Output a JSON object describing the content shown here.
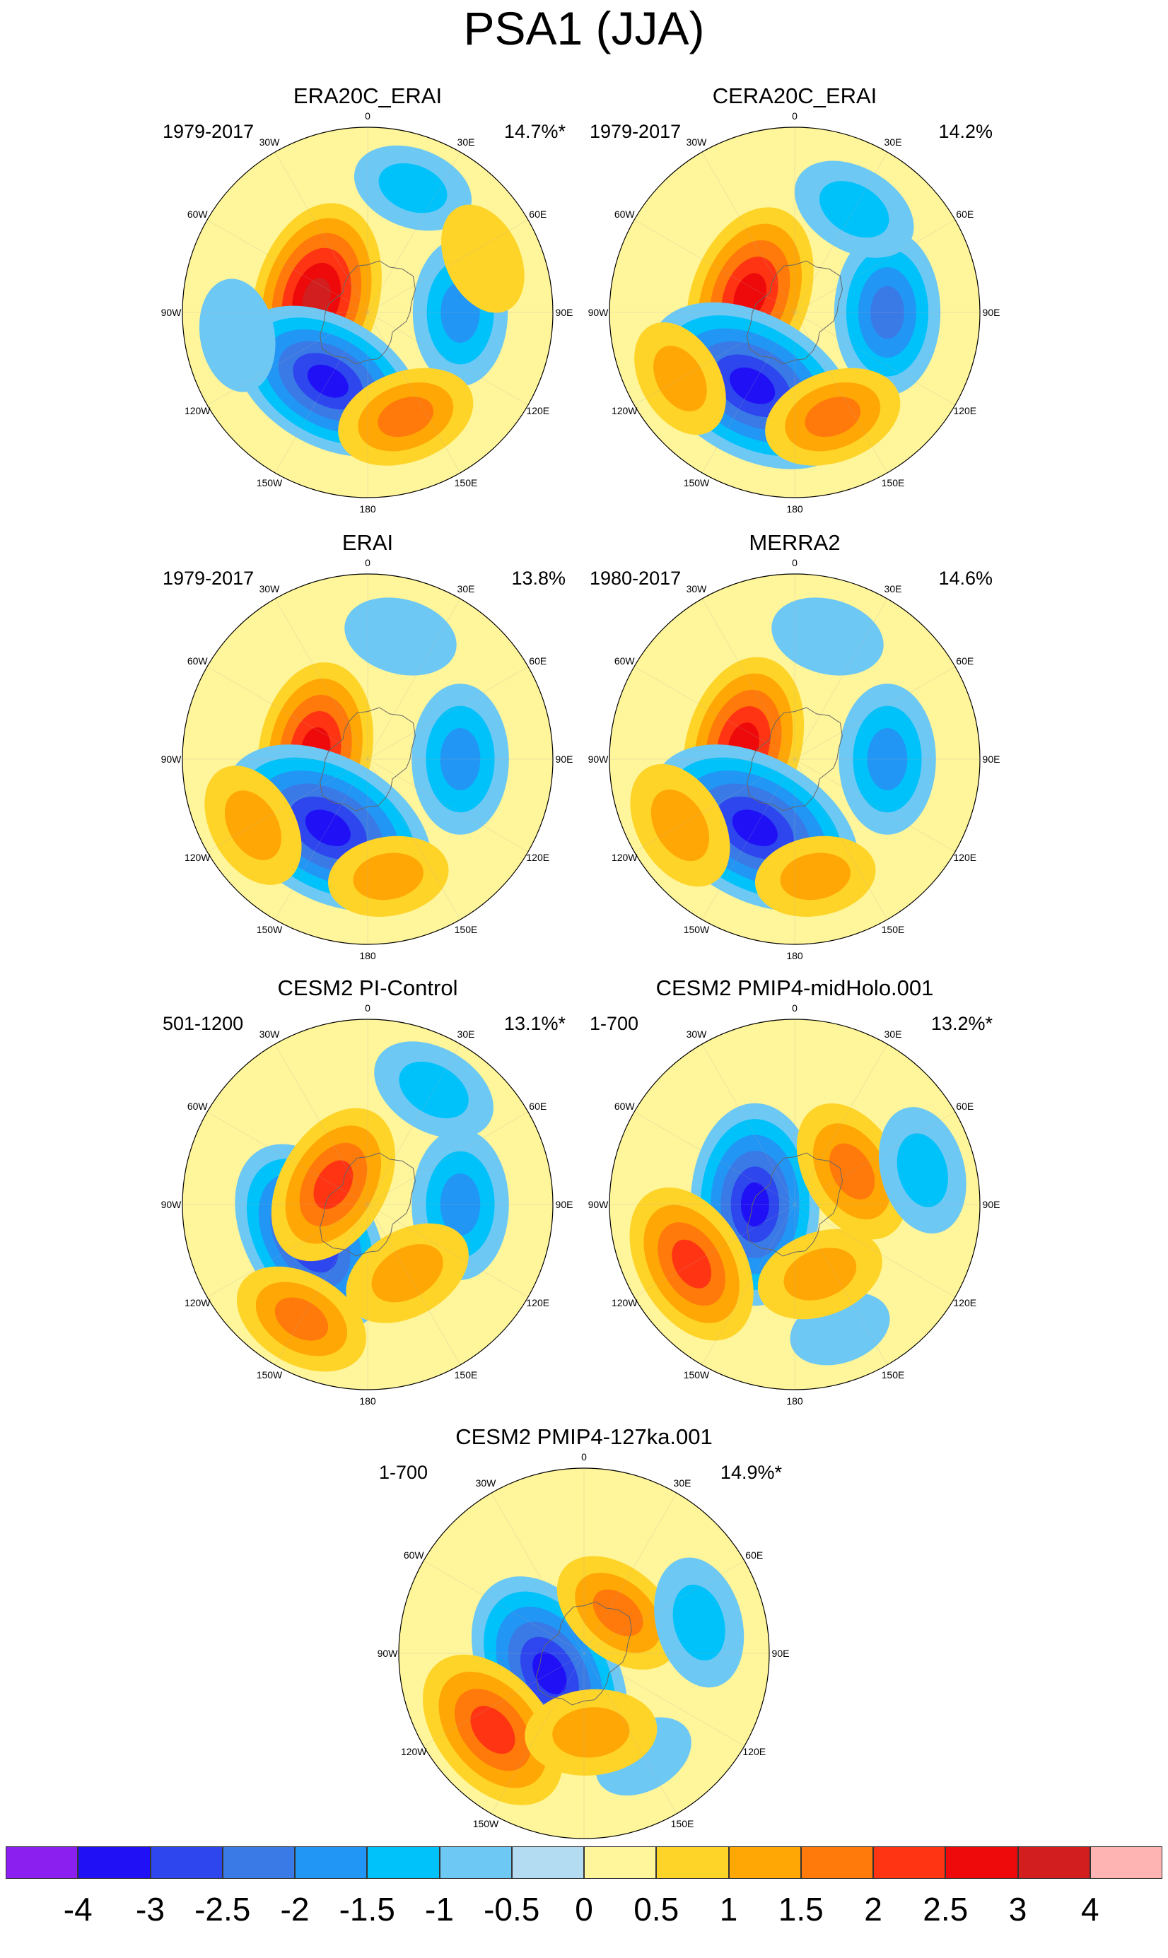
{
  "title": "PSA1 (JJA)",
  "longitude_labels": [
    "0",
    "30E",
    "60E",
    "90E",
    "120E",
    "150E",
    "180",
    "150W",
    "120W",
    "90W",
    "60W",
    "30W"
  ],
  "panels": [
    {
      "name": "ERA20C_ERAI",
      "period": "1979-2017",
      "variance": "14.7%*"
    },
    {
      "name": "CERA20C_ERAI",
      "period": "1979-2017",
      "variance": "14.2%"
    },
    {
      "name": "ERAI",
      "period": "1979-2017",
      "variance": "13.8%"
    },
    {
      "name": "MERRA2",
      "period": "1980-2017",
      "variance": "14.6%"
    },
    {
      "name": "CESM2 PI-Control",
      "period": "501-1200",
      "variance": "13.1%*"
    },
    {
      "name": "CESM2 PMIP4-midHolo.001",
      "period": "1-700",
      "variance": "13.2%*"
    },
    {
      "name": "CESM2 PMIP4-127ka.001",
      "period": "1-700",
      "variance": "14.9%*"
    }
  ],
  "colorbar": {
    "labels": [
      "-4",
      "-3",
      "-2.5",
      "-2",
      "-1.5",
      "-1",
      "-0.5",
      "0",
      "0.5",
      "1",
      "1.5",
      "2",
      "2.5",
      "3",
      "4"
    ],
    "colors": [
      "#8b1ff0",
      "#1f10f5",
      "#2d46ee",
      "#3a7ae6",
      "#2196f5",
      "#00c2fa",
      "#6ec8f4",
      "#b3dcf2",
      "#fff59a",
      "#ffd429",
      "#ffa705",
      "#ff7a0a",
      "#ff3412",
      "#ee0a0a",
      "#d21e1e",
      "#ffb4b4"
    ]
  },
  "chart_data": {
    "type": "heatmap",
    "title": "PSA1 (JJA)",
    "projection": "south polar stereographic",
    "contour_levels": [
      -4,
      -3,
      -2.5,
      -2,
      -1.5,
      -1,
      -0.5,
      0,
      0.5,
      1,
      1.5,
      2,
      2.5,
      3,
      4
    ],
    "panels": [
      {
        "name": "ERA20C_ERAI",
        "period": "1979-2017",
        "variance_explained": "14.7%*",
        "anomalies": [
          {
            "lon": 100,
            "lat": -30,
            "value": 0.3
          },
          {
            "lon": -75,
            "lat": -70,
            "value": 3.0
          },
          {
            "lon": -150,
            "lat": -60,
            "value": -3.2
          },
          {
            "lon": 90,
            "lat": -55,
            "value": -1.7
          },
          {
            "lon": 160,
            "lat": -48,
            "value": 1.5
          },
          {
            "lon": 20,
            "lat": -40,
            "value": -1.0
          },
          {
            "lon": 65,
            "lat": -42,
            "value": 0.8
          },
          {
            "lon": -100,
            "lat": -40,
            "value": -0.8
          }
        ]
      },
      {
        "name": "CERA20C_ERAI",
        "period": "1979-2017",
        "variance_explained": "14.2%",
        "anomalies": [
          {
            "lon": 50,
            "lat": -28,
            "value": 0.3
          },
          {
            "lon": -70,
            "lat": -72,
            "value": 2.7
          },
          {
            "lon": -150,
            "lat": -58,
            "value": -3.8
          },
          {
            "lon": 90,
            "lat": -55,
            "value": -2.2
          },
          {
            "lon": 160,
            "lat": -48,
            "value": 1.5
          },
          {
            "lon": 30,
            "lat": -45,
            "value": -1.2
          },
          {
            "lon": -120,
            "lat": -40,
            "value": 1.0
          }
        ]
      },
      {
        "name": "ERAI",
        "period": "1979-2017",
        "variance_explained": "13.8%",
        "anomalies": [
          {
            "lon": 100,
            "lat": -35,
            "value": -0.4
          },
          {
            "lon": -80,
            "lat": -70,
            "value": 2.5
          },
          {
            "lon": -150,
            "lat": -60,
            "value": -3.8
          },
          {
            "lon": 90,
            "lat": -55,
            "value": -1.8
          },
          {
            "lon": -120,
            "lat": -40,
            "value": 1.2
          },
          {
            "lon": 170,
            "lat": -45,
            "value": 1.0
          },
          {
            "lon": 15,
            "lat": -42,
            "value": -0.8
          }
        ]
      },
      {
        "name": "MERRA2",
        "period": "1980-2017",
        "variance_explained": "14.6%",
        "anomalies": [
          {
            "lon": 100,
            "lat": -35,
            "value": -0.4
          },
          {
            "lon": -75,
            "lat": -70,
            "value": 2.6
          },
          {
            "lon": -150,
            "lat": -60,
            "value": -3.8
          },
          {
            "lon": 90,
            "lat": -55,
            "value": -1.8
          },
          {
            "lon": -120,
            "lat": -40,
            "value": 1.3
          },
          {
            "lon": 170,
            "lat": -45,
            "value": 1.0
          },
          {
            "lon": 15,
            "lat": -42,
            "value": -0.8
          }
        ]
      },
      {
        "name": "CESM2 PI-Control",
        "period": "501-1200",
        "variance_explained": "13.1%*",
        "anomalies": [
          {
            "lon": 100,
            "lat": -30,
            "value": -0.3
          },
          {
            "lon": -120,
            "lat": -65,
            "value": -3.2
          },
          {
            "lon": -60,
            "lat": -75,
            "value": 2.2
          },
          {
            "lon": -150,
            "lat": -40,
            "value": 1.5
          },
          {
            "lon": 90,
            "lat": -55,
            "value": -1.8
          },
          {
            "lon": 30,
            "lat": -40,
            "value": -1.2
          },
          {
            "lon": 150,
            "lat": -60,
            "value": 1.3
          }
        ]
      },
      {
        "name": "CESM2 PMIP4-midHolo.001",
        "period": "1-700",
        "variance_explained": "13.2%*",
        "anomalies": [
          {
            "lon": -90,
            "lat": -75,
            "value": -3.2
          },
          {
            "lon": -120,
            "lat": -45,
            "value": 2.2
          },
          {
            "lon": 60,
            "lat": -65,
            "value": 1.7
          },
          {
            "lon": 75,
            "lat": -40,
            "value": -1.2
          },
          {
            "lon": 160,
            "lat": -40,
            "value": -0.5
          },
          {
            "lon": 160,
            "lat": -62,
            "value": 1.2
          }
        ]
      },
      {
        "name": "CESM2 PMIP4-127ka.001",
        "period": "1-700",
        "variance_explained": "14.9%*",
        "anomalies": [
          {
            "lon": -120,
            "lat": -75,
            "value": -3.4
          },
          {
            "lon": -130,
            "lat": -45,
            "value": 2.4
          },
          {
            "lon": 40,
            "lat": -70,
            "value": 1.5
          },
          {
            "lon": 75,
            "lat": -45,
            "value": -1.3
          },
          {
            "lon": 150,
            "lat": -45,
            "value": -0.5
          },
          {
            "lon": 175,
            "lat": -60,
            "value": 1.3
          }
        ]
      }
    ]
  }
}
